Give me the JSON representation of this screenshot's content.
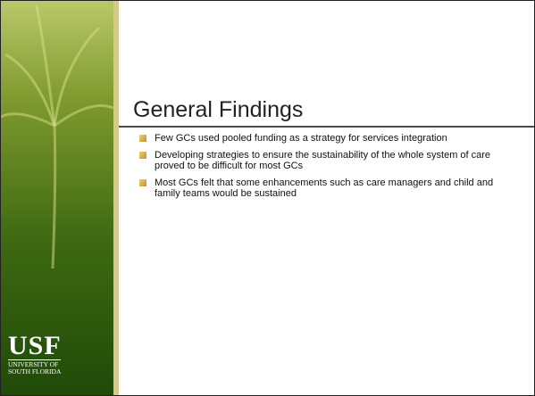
{
  "slide": {
    "title": "General Findings",
    "bullets": [
      "Few GCs used pooled funding as a strategy for services integration",
      "Developing strategies to ensure the sustainability of the whole system of care proved to be difficult for most GCs",
      "Most GCs felt that some enhancements such as care managers and child and family teams would be sustained"
    ],
    "logo": {
      "mark": "USF",
      "line1": "UNIVERSITY OF",
      "line2": "SOUTH FLORIDA"
    }
  }
}
